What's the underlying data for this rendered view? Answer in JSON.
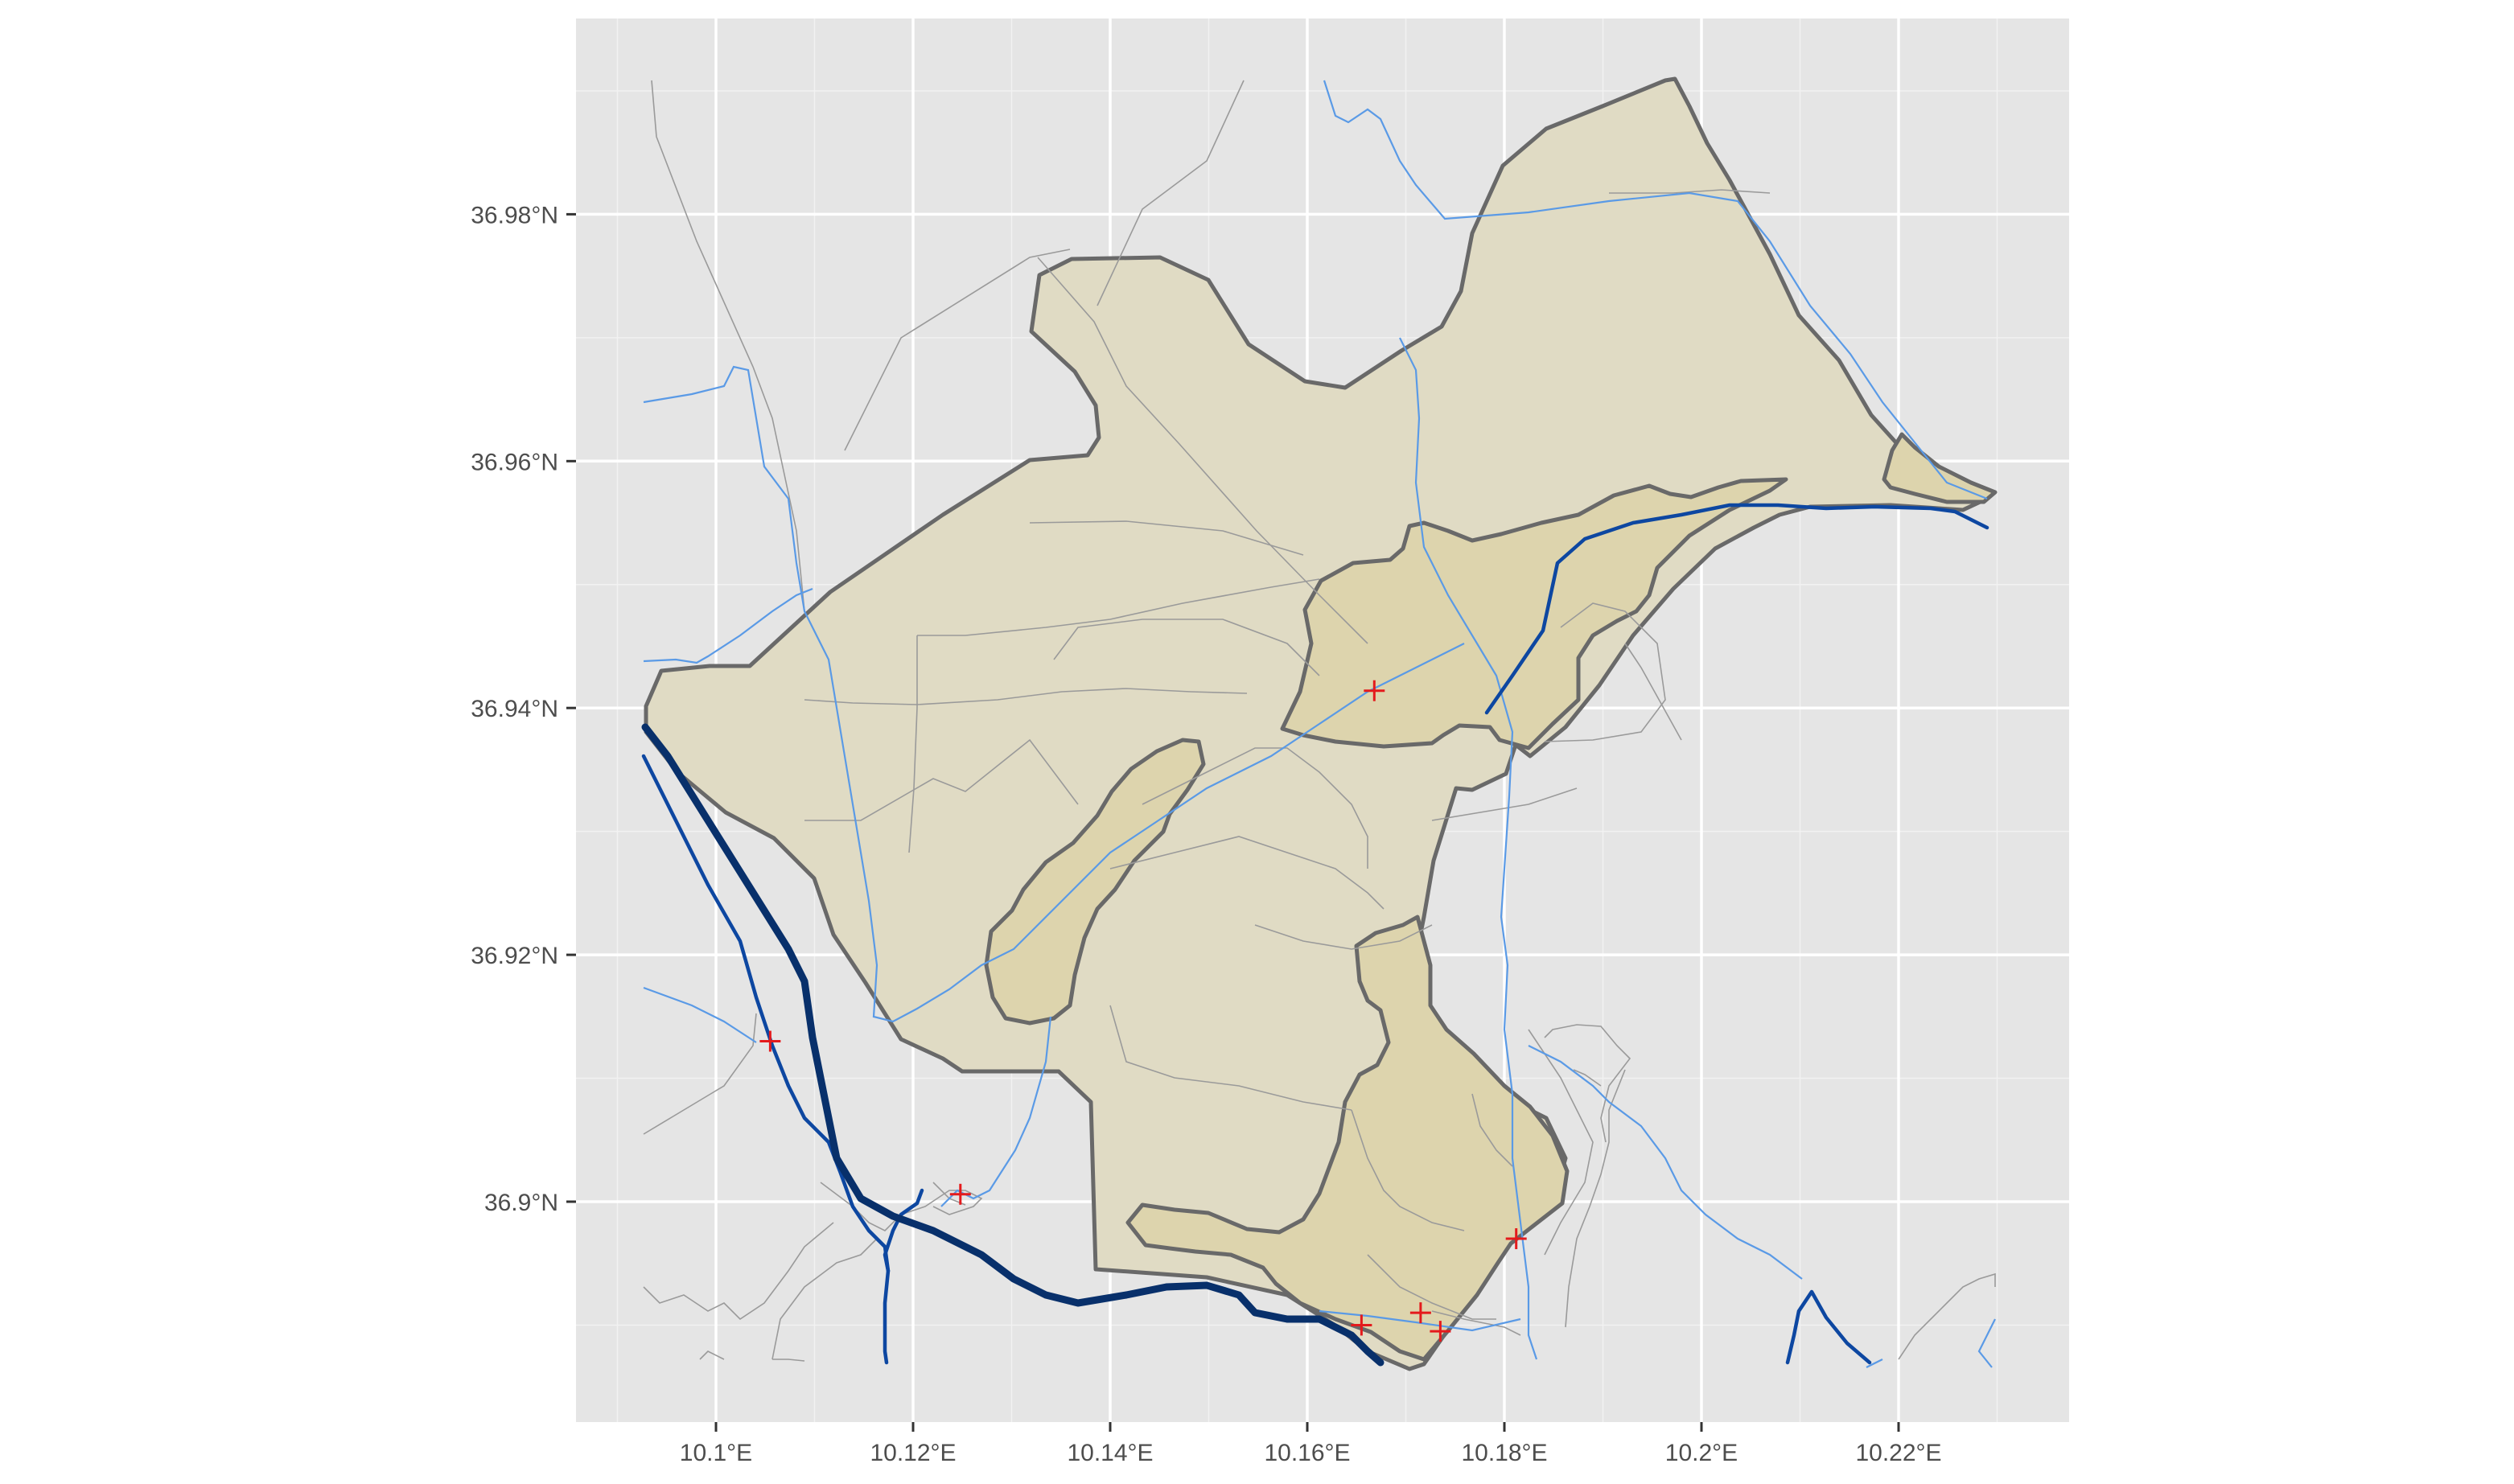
{
  "map": {
    "colors": {
      "panel": "#e5e5e5",
      "gridline": "#ffffff",
      "region_fill": "#e0dbc4",
      "subregion_fill": "#ddd4ad",
      "boundary": "#696969",
      "minor_road": "#9a9a9a",
      "stream": "#5a9ae6",
      "river": "#0d47a1",
      "highway": "#08306b",
      "marker": "#e41a1c"
    },
    "x_axis": {
      "ticks": [
        {
          "value": 10.1,
          "label": "10.1°E"
        },
        {
          "value": 10.12,
          "label": "10.12°E"
        },
        {
          "value": 10.14,
          "label": "10.14°E"
        },
        {
          "value": 10.16,
          "label": "10.16°E"
        },
        {
          "value": 10.18,
          "label": "10.18°E"
        },
        {
          "value": 10.2,
          "label": "10.2°E"
        },
        {
          "value": 10.22,
          "label": "10.22°E"
        }
      ]
    },
    "y_axis": {
      "ticks": [
        {
          "value": 36.9,
          "label": "36.9°N"
        },
        {
          "value": 36.92,
          "label": "36.92°N"
        },
        {
          "value": 36.94,
          "label": "36.94°N"
        },
        {
          "value": 36.96,
          "label": "36.96°N"
        },
        {
          "value": 36.98,
          "label": "36.98°N"
        }
      ]
    },
    "markers": [
      {
        "lon": 10.1055,
        "lat": 36.913
      },
      {
        "lon": 10.1248,
        "lat": 36.9006
      },
      {
        "lon": 10.1668,
        "lat": 36.9414
      },
      {
        "lon": 10.1812,
        "lat": 36.897
      },
      {
        "lon": 10.1655,
        "lat": 36.89
      },
      {
        "lon": 10.1715,
        "lat": 36.891
      },
      {
        "lon": 10.1735,
        "lat": 36.8895
      }
    ]
  }
}
